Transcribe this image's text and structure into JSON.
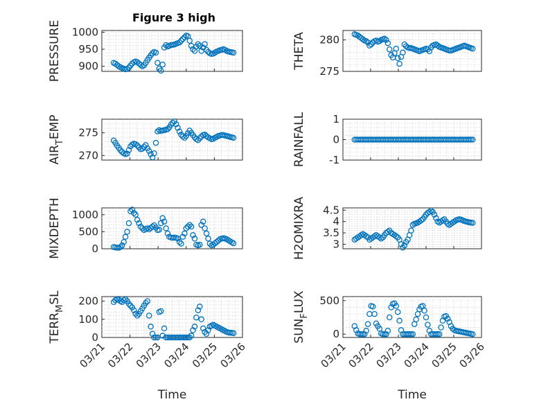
{
  "figure": {
    "title": "Figure 3 high"
  },
  "colors": {
    "marker": "#0072BD",
    "axes": "#262626",
    "grid": "#c8c8c8",
    "background": "#ffffff"
  },
  "chart_data": [
    {
      "type": "scatter",
      "ylabel": "PRESSURE",
      "xlabel": "",
      "xlim": [
        0,
        5
      ],
      "ylim": [
        885,
        1005
      ],
      "yticks": [
        900,
        950,
        1000
      ],
      "ytick_labels": [
        "900",
        "950",
        "1000"
      ],
      "grid": true,
      "minor_grid": true,
      "x": [
        0.42,
        0.48,
        0.54,
        0.6,
        0.66,
        0.72,
        0.78,
        0.84,
        0.9,
        0.96,
        1.02,
        1.08,
        1.14,
        1.2,
        1.26,
        1.32,
        1.38,
        1.44,
        1.5,
        1.56,
        1.62,
        1.68,
        1.74,
        1.8,
        1.86,
        1.92,
        1.98,
        2.04,
        2.1,
        2.16,
        2.22,
        2.28,
        2.34,
        2.4,
        2.46,
        2.52,
        2.58,
        2.64,
        2.7,
        2.76,
        2.82,
        2.88,
        2.94,
        3.0,
        3.06,
        3.12,
        3.18,
        3.24,
        3.3,
        3.36,
        3.42,
        3.48,
        3.54,
        3.6,
        3.66,
        3.72,
        3.78,
        3.84,
        3.9,
        3.96,
        4.02,
        4.08,
        4.14,
        4.2,
        4.26,
        4.32,
        4.38,
        4.44,
        4.5,
        4.56,
        4.62,
        4.68
      ],
      "y": [
        910,
        908,
        904,
        900,
        897,
        895,
        893,
        891,
        892,
        896,
        902,
        908,
        912,
        914,
        912,
        908,
        904,
        900,
        903,
        910,
        918,
        925,
        932,
        938,
        942,
        940,
        910,
        893,
        887,
        905,
        955,
        962,
        958,
        960,
        962,
        963,
        964,
        966,
        968,
        970,
        975,
        980,
        985,
        990,
        988,
        975,
        960,
        950,
        945,
        958,
        965,
        960,
        945,
        955,
        965,
        948,
        942,
        938,
        936,
        937,
        940,
        943,
        945,
        947,
        948,
        950,
        948,
        945,
        943,
        942,
        941,
        940
      ]
    },
    {
      "type": "scatter",
      "ylabel": "THETA",
      "xlabel": "",
      "xlim": [
        0,
        5
      ],
      "ylim": [
        275,
        281.5
      ],
      "yticks": [
        275,
        280
      ],
      "ytick_labels": [
        "275",
        "280"
      ],
      "grid": true,
      "minor_grid": true,
      "x": [
        0.42,
        0.48,
        0.54,
        0.6,
        0.66,
        0.72,
        0.78,
        0.84,
        0.9,
        0.96,
        1.02,
        1.08,
        1.14,
        1.2,
        1.26,
        1.32,
        1.38,
        1.44,
        1.5,
        1.56,
        1.62,
        1.68,
        1.74,
        1.8,
        1.86,
        1.92,
        1.98,
        2.04,
        2.1,
        2.16,
        2.22,
        2.28,
        2.34,
        2.4,
        2.46,
        2.52,
        2.58,
        2.64,
        2.7,
        2.76,
        2.82,
        2.88,
        2.94,
        3.0,
        3.06,
        3.12,
        3.18,
        3.24,
        3.3,
        3.36,
        3.42,
        3.48,
        3.54,
        3.6,
        3.66,
        3.72,
        3.78,
        3.84,
        3.9,
        3.96,
        4.02,
        4.08,
        4.14,
        4.2,
        4.26,
        4.32,
        4.38,
        4.44,
        4.5,
        4.56,
        4.62,
        4.68
      ],
      "y": [
        280.9,
        280.8,
        280.7,
        280.5,
        280.3,
        280.1,
        279.9,
        279.8,
        279.6,
        279.1,
        279.3,
        279.6,
        279.8,
        279.9,
        279.7,
        279.8,
        280.0,
        280.1,
        280.2,
        280.0,
        279.5,
        278.5,
        277.6,
        277.2,
        277.9,
        278.6,
        277.1,
        276.2,
        277.3,
        278.0,
        279.3,
        279.0,
        278.8,
        278.7,
        278.7,
        278.6,
        278.5,
        278.4,
        278.3,
        278.2,
        278.3,
        278.4,
        278.5,
        278.6,
        278.5,
        278.2,
        278.8,
        279.1,
        279.2,
        279.3,
        279.1,
        278.9,
        278.8,
        278.7,
        278.6,
        278.5,
        278.4,
        278.3,
        278.3,
        278.4,
        278.5,
        278.6,
        278.7,
        278.8,
        278.9,
        279.0,
        279.1,
        279.0,
        278.9,
        278.8,
        278.7,
        278.6
      ]
    },
    {
      "type": "scatter",
      "ylabel": "AIR_TEMP",
      "ylabel_parts": [
        "AIR",
        "T",
        "EMP"
      ],
      "xlabel": "",
      "xlim": [
        0,
        5
      ],
      "ylim": [
        269,
        278
      ],
      "yticks": [
        270,
        275
      ],
      "ytick_labels": [
        "270",
        "275"
      ],
      "grid": true,
      "minor_grid": true,
      "x": [
        0.42,
        0.48,
        0.54,
        0.6,
        0.66,
        0.72,
        0.78,
        0.84,
        0.9,
        0.96,
        1.02,
        1.08,
        1.14,
        1.2,
        1.26,
        1.32,
        1.38,
        1.44,
        1.5,
        1.56,
        1.62,
        1.68,
        1.74,
        1.8,
        1.86,
        1.92,
        1.98,
        2.04,
        2.1,
        2.16,
        2.22,
        2.28,
        2.34,
        2.4,
        2.46,
        2.52,
        2.58,
        2.64,
        2.7,
        2.76,
        2.82,
        2.88,
        2.94,
        3.0,
        3.06,
        3.12,
        3.18,
        3.24,
        3.3,
        3.36,
        3.42,
        3.48,
        3.54,
        3.6,
        3.66,
        3.72,
        3.78,
        3.84,
        3.9,
        3.96,
        4.02,
        4.08,
        4.14,
        4.2,
        4.26,
        4.32,
        4.38,
        4.44,
        4.5,
        4.56,
        4.62,
        4.68
      ],
      "y": [
        273.3,
        272.8,
        272.2,
        271.7,
        271.2,
        270.8,
        270.5,
        270.3,
        270.4,
        271.2,
        272.0,
        272.4,
        272.6,
        272.5,
        272.2,
        271.8,
        271.4,
        271.5,
        271.9,
        272.3,
        271.6,
        271.0,
        270.3,
        269.6,
        270.5,
        272.8,
        275.3,
        275.6,
        275.4,
        275.5,
        275.6,
        275.7,
        275.8,
        276.2,
        276.8,
        277.2,
        277.5,
        276.9,
        276.1,
        275.3,
        274.6,
        274.2,
        273.9,
        274.3,
        274.9,
        275.5,
        275.0,
        274.5,
        274.0,
        273.6,
        273.4,
        273.8,
        274.2,
        274.5,
        274.6,
        274.3,
        274.0,
        273.8,
        273.6,
        273.7,
        273.9,
        274.1,
        274.3,
        274.4,
        274.5,
        274.5,
        274.4,
        274.3,
        274.2,
        274.1,
        274.0,
        273.9
      ]
    },
    {
      "type": "scatter",
      "ylabel": "RAINFALL",
      "xlabel": "",
      "xlim": [
        0,
        5
      ],
      "ylim": [
        -1,
        1
      ],
      "yticks": [
        -1,
        0,
        1
      ],
      "ytick_labels": [
        "-1",
        "0",
        "1"
      ],
      "grid": true,
      "minor_grid": true,
      "x": [
        0.42,
        0.48,
        0.54,
        0.6,
        0.66,
        0.72,
        0.78,
        0.84,
        0.9,
        0.96,
        1.02,
        1.08,
        1.14,
        1.2,
        1.26,
        1.32,
        1.38,
        1.44,
        1.5,
        1.56,
        1.62,
        1.68,
        1.74,
        1.8,
        1.86,
        1.92,
        1.98,
        2.04,
        2.1,
        2.16,
        2.22,
        2.28,
        2.34,
        2.4,
        2.46,
        2.52,
        2.58,
        2.64,
        2.7,
        2.76,
        2.82,
        2.88,
        2.94,
        3.0,
        3.06,
        3.12,
        3.18,
        3.24,
        3.3,
        3.36,
        3.42,
        3.48,
        3.54,
        3.6,
        3.66,
        3.72,
        3.78,
        3.84,
        3.9,
        3.96,
        4.02,
        4.08,
        4.14,
        4.2,
        4.26,
        4.32,
        4.38,
        4.44,
        4.5,
        4.56,
        4.62,
        4.68
      ],
      "y": [
        0,
        0,
        0,
        0,
        0,
        0,
        0,
        0,
        0,
        0,
        0,
        0,
        0,
        0,
        0,
        0,
        0,
        0,
        0,
        0,
        0,
        0,
        0,
        0,
        0,
        0,
        0,
        0,
        0,
        0,
        0,
        0,
        0,
        0,
        0,
        0,
        0,
        0,
        0,
        0,
        0,
        0,
        0,
        0,
        0,
        0,
        0,
        0,
        0,
        0,
        0,
        0,
        0,
        0,
        0,
        0,
        0,
        0,
        0,
        0,
        0,
        0,
        0,
        0,
        0,
        0,
        0,
        0,
        0,
        0,
        0,
        0
      ]
    },
    {
      "type": "scatter",
      "ylabel": "MIXDEPTH",
      "xlabel": "",
      "xlim": [
        0,
        5
      ],
      "ylim": [
        0,
        1200
      ],
      "yticks": [
        0,
        500,
        1000
      ],
      "ytick_labels": [
        "0",
        "500",
        "1000"
      ],
      "grid": true,
      "minor_grid": true,
      "x": [
        0.42,
        0.48,
        0.54,
        0.6,
        0.66,
        0.72,
        0.78,
        0.84,
        0.9,
        0.96,
        1.02,
        1.08,
        1.14,
        1.2,
        1.26,
        1.32,
        1.38,
        1.44,
        1.5,
        1.56,
        1.62,
        1.68,
        1.74,
        1.8,
        1.86,
        1.92,
        1.98,
        2.04,
        2.1,
        2.16,
        2.22,
        2.28,
        2.34,
        2.4,
        2.46,
        2.52,
        2.58,
        2.64,
        2.7,
        2.76,
        2.82,
        2.88,
        2.94,
        3.0,
        3.06,
        3.12,
        3.18,
        3.24,
        3.3,
        3.36,
        3.42,
        3.48,
        3.54,
        3.6,
        3.66,
        3.72,
        3.78,
        3.84,
        3.9,
        3.96,
        4.02,
        4.08,
        4.14,
        4.2,
        4.26,
        4.32,
        4.38,
        4.44,
        4.5,
        4.56,
        4.62,
        4.68
      ],
      "y": [
        50,
        40,
        30,
        30,
        50,
        100,
        200,
        350,
        500,
        750,
        1100,
        1150,
        1050,
        1000,
        850,
        750,
        650,
        600,
        550,
        580,
        600,
        570,
        610,
        650,
        690,
        620,
        550,
        560,
        750,
        900,
        800,
        600,
        450,
        350,
        330,
        320,
        330,
        320,
        300,
        200,
        150,
        350,
        450,
        600,
        650,
        700,
        650,
        400,
        300,
        120,
        100,
        120,
        700,
        800,
        600,
        450,
        300,
        150,
        100,
        120,
        160,
        200,
        240,
        280,
        300,
        310,
        300,
        280,
        250,
        220,
        190,
        160
      ]
    },
    {
      "type": "scatter",
      "ylabel": "H2OMIXRA",
      "xlabel": "",
      "xlim": [
        0,
        5
      ],
      "ylim": [
        2.8,
        4.6
      ],
      "yticks": [
        3,
        3.5,
        4,
        4.5
      ],
      "ytick_labels": [
        "3",
        "3.5",
        "4",
        "4.5"
      ],
      "grid": true,
      "minor_grid": true,
      "x": [
        0.42,
        0.48,
        0.54,
        0.6,
        0.66,
        0.72,
        0.78,
        0.84,
        0.9,
        0.96,
        1.02,
        1.08,
        1.14,
        1.2,
        1.26,
        1.32,
        1.38,
        1.44,
        1.5,
        1.56,
        1.62,
        1.68,
        1.74,
        1.8,
        1.86,
        1.92,
        1.98,
        2.04,
        2.1,
        2.16,
        2.22,
        2.28,
        2.34,
        2.4,
        2.46,
        2.52,
        2.58,
        2.64,
        2.7,
        2.76,
        2.82,
        2.88,
        2.94,
        3.0,
        3.06,
        3.12,
        3.18,
        3.24,
        3.3,
        3.36,
        3.42,
        3.48,
        3.54,
        3.6,
        3.66,
        3.72,
        3.78,
        3.84,
        3.9,
        3.96,
        4.02,
        4.08,
        4.14,
        4.2,
        4.26,
        4.32,
        4.38,
        4.44,
        4.5,
        4.56,
        4.62,
        4.68
      ],
      "y": [
        3.2,
        3.25,
        3.3,
        3.35,
        3.4,
        3.45,
        3.4,
        3.35,
        3.3,
        3.2,
        3.25,
        3.3,
        3.35,
        3.4,
        3.35,
        3.3,
        3.25,
        3.3,
        3.4,
        3.5,
        3.55,
        3.6,
        3.5,
        3.45,
        3.4,
        3.35,
        3.3,
        3.2,
        3.0,
        2.85,
        2.95,
        3.1,
        3.2,
        3.4,
        3.6,
        3.85,
        3.9,
        3.92,
        3.95,
        4.0,
        4.05,
        4.1,
        4.2,
        4.3,
        4.38,
        4.42,
        4.48,
        4.42,
        4.3,
        4.15,
        4.0,
        3.95,
        4.0,
        4.05,
        4.1,
        4.0,
        3.9,
        3.85,
        3.9,
        3.95,
        4.0,
        4.05,
        4.08,
        4.1,
        4.08,
        4.05,
        4.02,
        4.0,
        3.98,
        3.96,
        3.95,
        3.94
      ]
    },
    {
      "type": "scatter",
      "ylabel": "TERR_MSL",
      "ylabel_parts": [
        "TERR",
        "M",
        "SL"
      ],
      "xlabel": "Time",
      "xlim": [
        0,
        5
      ],
      "ylim": [
        0,
        225
      ],
      "yticks": [
        0,
        100,
        200
      ],
      "ytick_labels": [
        "0",
        "100",
        "200"
      ],
      "xticks": [
        0,
        1,
        2,
        3,
        4,
        5
      ],
      "xtick_labels": [
        "03/21",
        "03/22",
        "03/23",
        "03/24",
        "03/25",
        "03/26"
      ],
      "grid": true,
      "minor_grid": true,
      "x": [
        0.42,
        0.48,
        0.54,
        0.6,
        0.66,
        0.72,
        0.78,
        0.84,
        0.9,
        0.96,
        1.02,
        1.08,
        1.14,
        1.2,
        1.26,
        1.32,
        1.38,
        1.44,
        1.5,
        1.56,
        1.62,
        1.68,
        1.74,
        1.8,
        1.86,
        1.92,
        1.98,
        2.04,
        2.1,
        2.16,
        2.22,
        2.28,
        2.34,
        2.4,
        2.46,
        2.52,
        2.58,
        2.64,
        2.7,
        2.76,
        2.82,
        2.88,
        2.94,
        3.0,
        3.06,
        3.12,
        3.18,
        3.24,
        3.3,
        3.36,
        3.42,
        3.48,
        3.54,
        3.6,
        3.66,
        3.72,
        3.78,
        3.84,
        3.9,
        3.96,
        4.02,
        4.08,
        4.14,
        4.2,
        4.26,
        4.32,
        4.38,
        4.44,
        4.5,
        4.56,
        4.62,
        4.68
      ],
      "y": [
        195,
        205,
        210,
        208,
        200,
        195,
        205,
        210,
        200,
        185,
        175,
        165,
        150,
        130,
        120,
        130,
        145,
        160,
        175,
        190,
        200,
        120,
        60,
        20,
        0,
        0,
        0,
        140,
        145,
        10,
        50,
        0,
        0,
        0,
        0,
        0,
        0,
        0,
        0,
        0,
        0,
        0,
        0,
        0,
        0,
        0,
        10,
        40,
        60,
        110,
        150,
        170,
        100,
        50,
        30,
        20,
        40,
        60,
        65,
        70,
        65,
        60,
        55,
        50,
        45,
        40,
        35,
        30,
        28,
        26,
        25,
        24
      ]
    },
    {
      "type": "scatter",
      "ylabel": "SUN_FLUX",
      "ylabel_parts": [
        "SUN",
        "F",
        "LUX"
      ],
      "xlabel": "Time",
      "xlim": [
        0,
        5
      ],
      "ylim": [
        -50,
        560
      ],
      "yticks": [
        0,
        500
      ],
      "ytick_labels": [
        "0",
        "500"
      ],
      "xticks": [
        0,
        1,
        2,
        3,
        4,
        5
      ],
      "xtick_labels": [
        "03/21",
        "03/22",
        "03/23",
        "03/24",
        "03/25",
        "03/26"
      ],
      "grid": true,
      "minor_grid": true,
      "x": [
        0.42,
        0.48,
        0.54,
        0.6,
        0.66,
        0.72,
        0.78,
        0.84,
        0.9,
        0.96,
        1.02,
        1.08,
        1.14,
        1.2,
        1.26,
        1.32,
        1.38,
        1.44,
        1.5,
        1.56,
        1.62,
        1.68,
        1.74,
        1.8,
        1.86,
        1.92,
        1.98,
        2.04,
        2.1,
        2.16,
        2.22,
        2.28,
        2.34,
        2.4,
        2.46,
        2.52,
        2.58,
        2.64,
        2.7,
        2.76,
        2.82,
        2.88,
        2.94,
        3.0,
        3.06,
        3.12,
        3.18,
        3.24,
        3.3,
        3.36,
        3.42,
        3.48,
        3.54,
        3.6,
        3.66,
        3.72,
        3.78,
        3.84,
        3.9,
        3.96,
        4.02,
        4.08,
        4.14,
        4.2,
        4.26,
        4.32,
        4.38,
        4.44,
        4.5,
        4.56,
        4.62,
        4.68
      ],
      "y": [
        120,
        60,
        10,
        0,
        0,
        0,
        0,
        50,
        150,
        300,
        420,
        410,
        300,
        160,
        120,
        80,
        10,
        0,
        0,
        0,
        50,
        250,
        400,
        450,
        460,
        420,
        330,
        200,
        60,
        0,
        0,
        0,
        0,
        0,
        0,
        0,
        150,
        220,
        300,
        370,
        410,
        420,
        350,
        250,
        140,
        50,
        0,
        0,
        0,
        0,
        0,
        0,
        100,
        200,
        260,
        270,
        230,
        180,
        120,
        80,
        60,
        50,
        45,
        40,
        35,
        30,
        25,
        20,
        15,
        10,
        5,
        0
      ]
    }
  ]
}
